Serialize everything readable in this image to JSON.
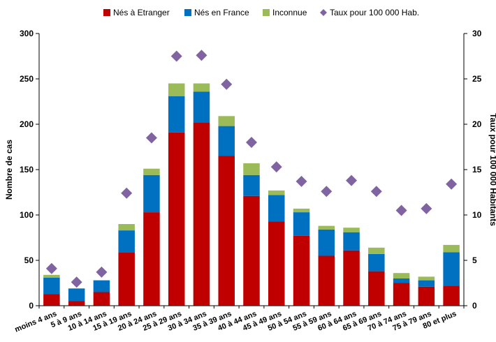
{
  "chart_data": {
    "type": "bar",
    "stacked": true,
    "categories": [
      "moins 4 ans",
      "5 à 9 ans",
      "10 à 14 ans",
      "15 à 19 ans",
      "20 à 24 ans",
      "25 à 29 ans",
      "30 à 34 ans",
      "35 à 39 ans",
      "40 à 44 ans",
      "45 à 49 ans",
      "50 à 54 ans",
      "55 à 59 ans",
      "60 à 64 ans",
      "65 à 69 ans",
      "70 à 74 ans",
      "75 à 79 ans",
      "80 et plus"
    ],
    "series": [
      {
        "name": "Nés à Etranger",
        "color": "#c00000",
        "values": [
          13,
          5,
          15,
          59,
          103,
          191,
          202,
          165,
          121,
          93,
          77,
          55,
          61,
          38,
          25,
          21,
          22
        ]
      },
      {
        "name": "Nés en France",
        "color": "#0070c0",
        "values": [
          18,
          14,
          13,
          24,
          41,
          40,
          34,
          33,
          23,
          29,
          26,
          29,
          20,
          19,
          5,
          7,
          37
        ]
      },
      {
        "name": "Inconnue",
        "color": "#9bbb59",
        "values": [
          3,
          0,
          0,
          7,
          7,
          14,
          9,
          11,
          13,
          5,
          4,
          4,
          5,
          7,
          6,
          4,
          8
        ]
      }
    ],
    "rate_series": {
      "name": "Taux pour 100 000 Hab.",
      "color": "#8064a2",
      "axis": "right",
      "values": [
        4.1,
        2.6,
        3.7,
        12.4,
        18.5,
        27.5,
        27.6,
        24.4,
        18.0,
        15.3,
        13.7,
        12.6,
        13.8,
        12.6,
        10.5,
        10.7,
        13.4
      ]
    },
    "ylabel": "Nombre de cas",
    "y2label": "Taux pour 100 000 Habitants",
    "ylim": [
      0,
      300
    ],
    "y2lim": [
      0,
      30
    ],
    "yticks": [
      "0",
      "50",
      "100",
      "150",
      "200",
      "250",
      "300"
    ],
    "y2ticks": [
      "0",
      "5",
      "10",
      "15",
      "20",
      "25",
      "30"
    ],
    "legend_position": "top",
    "grid": false
  }
}
